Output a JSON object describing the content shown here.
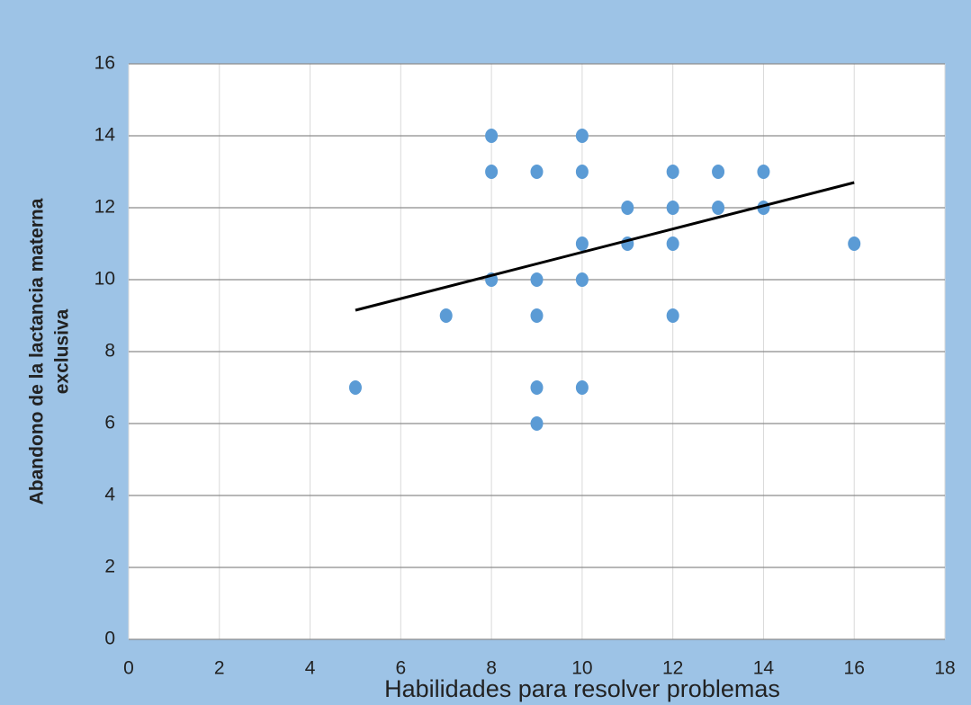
{
  "chart_data": {
    "type": "scatter",
    "x_label": "Habilidades para resolver problemas",
    "y_label": [
      "Abandono de la lactancia materna",
      "exclusiva"
    ],
    "color": "#5b9bd5",
    "background": "#9dc3e6",
    "grid": true,
    "xlim": [
      0,
      18
    ],
    "xticks": [
      0,
      2,
      4,
      6,
      8,
      10,
      12,
      14,
      16,
      18
    ],
    "ylim": [
      0,
      16
    ],
    "yticks": [
      0,
      2,
      4,
      6,
      8,
      10,
      12,
      14,
      16
    ],
    "x": [
      8,
      10,
      8,
      9,
      10,
      12,
      13,
      14,
      11,
      12,
      13,
      14,
      10,
      11,
      12,
      16,
      8,
      9,
      10,
      7,
      9,
      12,
      5,
      9,
      10,
      9
    ],
    "y": [
      14,
      14,
      13,
      13,
      13,
      13,
      13,
      13,
      12,
      12,
      12,
      12,
      11,
      11,
      11,
      11,
      10,
      10,
      10,
      9,
      9,
      9,
      7,
      7,
      7,
      6
    ],
    "trendline": {
      "color": "#000000",
      "x": [
        5,
        16
      ],
      "y": [
        9.15,
        12.7
      ]
    }
  }
}
